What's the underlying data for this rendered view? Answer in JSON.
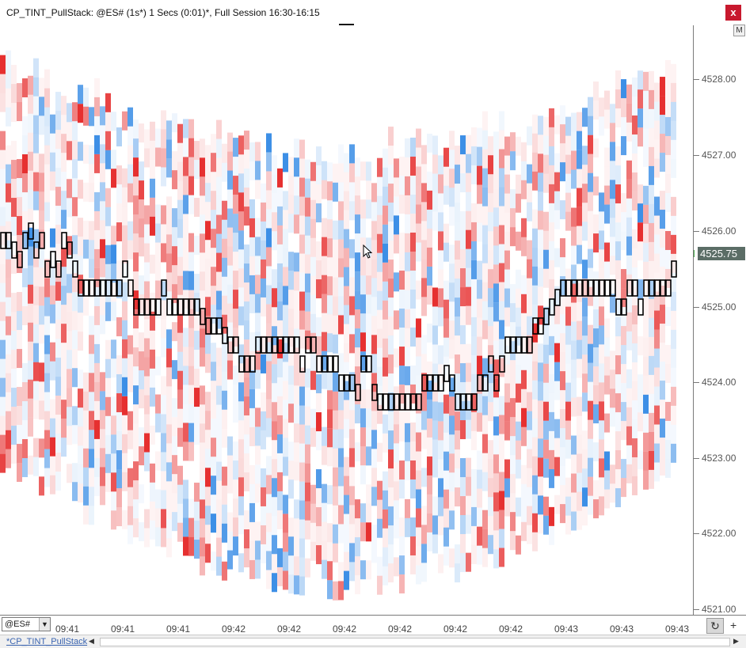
{
  "window": {
    "title": "CP_TINT_PullStack: @ES# (1s*) 1 Secs (0:01)*, Full Session 16:30-16:15",
    "close_label": "x",
    "m_button_label": "M"
  },
  "price_axis": {
    "labels": [
      "4528.00",
      "4527.00",
      "4526.00",
      "4525.00",
      "4524.00",
      "4523.00",
      "4522.00",
      "4521.00"
    ],
    "last_price": "4525.75"
  },
  "time_axis": {
    "labels": [
      "09:41",
      "09:41",
      "09:41",
      "09:42",
      "09:42",
      "09:42",
      "09:42",
      "09:42",
      "09:42",
      "09:43",
      "09:43",
      "09:43"
    ]
  },
  "toolbar": {
    "symbol": "@ES#",
    "refresh_icon": "refresh-icon",
    "plus_label": "+"
  },
  "bottom": {
    "study_tab": "*CP_TINT_PullStack"
  },
  "colors": {
    "bid_pull": "#3d8fe6",
    "ask_pull": "#e63030",
    "axis": "#7a7a7a",
    "last_price_bg": "#5b6d66"
  },
  "chart_data": {
    "type": "heatmap",
    "price_min": 4521.0,
    "price_max": 4528.25,
    "tick_size": 0.25,
    "column_count": 122,
    "trade_path": [
      4525.875,
      4525.875,
      4525.75,
      4525.625,
      4525.875,
      4526.0,
      4525.75,
      4525.875,
      4525.5,
      4525.625,
      4525.5,
      4525.875,
      4525.75,
      4525.5,
      4525.25,
      4525.25,
      4525.25,
      4525.25,
      4525.25,
      4525.25,
      4525.25,
      4525.25,
      4525.5,
      4525.25,
      4525.0,
      4525.0,
      4525.0,
      4525.0,
      4525.0,
      4525.25,
      4525.0,
      4525.0,
      4525.0,
      4525.0,
      4525.0,
      4525.0,
      4524.875,
      4524.75,
      4524.75,
      4524.75,
      4524.625,
      4524.5,
      4524.5,
      4524.25,
      4524.25,
      4524.25,
      4524.5,
      4524.5,
      4524.5,
      4524.5,
      4524.5,
      4524.5,
      4524.5,
      4524.5,
      4524.25,
      4524.5,
      4524.5,
      4524.25,
      4524.25,
      4524.25,
      4524.25,
      4524.0,
      4524.0,
      4524.0,
      4523.875,
      4524.25,
      4524.25,
      4523.875,
      4523.75,
      4523.75,
      4523.75,
      4523.75,
      4523.75,
      4523.75,
      4523.75,
      4523.75,
      4524.0,
      4524.0,
      4524.0,
      4524.0,
      4524.125,
      4524.0,
      4523.75,
      4523.75,
      4523.75,
      4523.75,
      4524.0,
      4524.0,
      4524.25,
      4524.0,
      4524.25,
      4524.5,
      4524.5,
      4524.5,
      4524.5,
      4524.5,
      4524.75,
      4524.75,
      4524.875,
      4525.0,
      4525.125,
      4525.25,
      4525.25,
      4525.25,
      4525.25,
      4525.25,
      4525.25,
      4525.25,
      4525.25,
      4525.25,
      4525.25,
      4525.0,
      4525.0,
      4525.25,
      4525.25,
      4525.0,
      4525.25,
      4525.25,
      4525.25,
      4525.25,
      4525.25,
      4525.5
    ]
  }
}
